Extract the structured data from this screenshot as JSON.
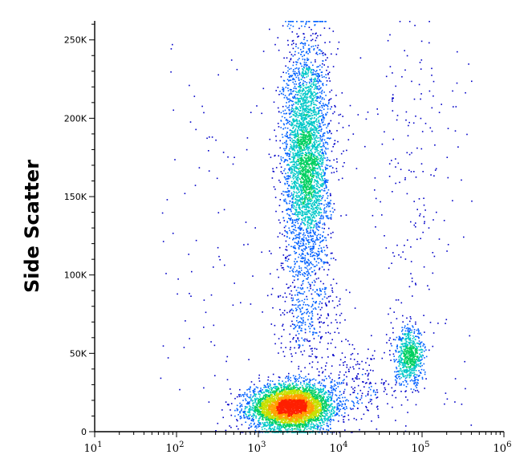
{
  "chart_data": {
    "type": "scatter",
    "title": "",
    "xlabel": "",
    "ylabel": "Side Scatter",
    "x_scale": "log",
    "xlim": [
      10,
      1000000
    ],
    "ylim": [
      0,
      262144
    ],
    "grid": false,
    "legend": "none",
    "x_ticks": [
      {
        "value": 10,
        "base": "10",
        "exp": "1"
      },
      {
        "value": 100,
        "base": "10",
        "exp": "2"
      },
      {
        "value": 1000,
        "base": "10",
        "exp": "3"
      },
      {
        "value": 10000,
        "base": "10",
        "exp": "4"
      },
      {
        "value": 100000,
        "base": "10",
        "exp": "5"
      },
      {
        "value": 1000000,
        "base": "10",
        "exp": "6"
      }
    ],
    "y_ticks": [
      {
        "value": 0,
        "label": "0"
      },
      {
        "value": 50000,
        "label": "50K"
      },
      {
        "value": 100000,
        "label": "100K"
      },
      {
        "value": 150000,
        "label": "150K"
      },
      {
        "value": 200000,
        "label": "200K"
      },
      {
        "value": 250000,
        "label": "250K"
      }
    ],
    "density_colormap": [
      "#0000c8",
      "#0060ff",
      "#00c8c8",
      "#00d060",
      "#c8e000",
      "#ffa000",
      "#ff2000"
    ],
    "populations": [
      {
        "center_x": 2500,
        "center_y": 16000,
        "spread_log_x": 0.25,
        "spread_y": 7000,
        "count": 4500
      },
      {
        "center_x": 3800,
        "center_y": 175000,
        "spread_log_x": 0.14,
        "spread_y": 38000,
        "count": 3500
      },
      {
        "center_x": 70000,
        "center_y": 48000,
        "spread_log_x": 0.09,
        "spread_y": 9000,
        "count": 700
      },
      {
        "center_x": 70000,
        "center_y": 170000,
        "spread_log_x": 0.2,
        "spread_y": 50000,
        "count": 130
      },
      {
        "center_x": 4000,
        "center_y": 75000,
        "spread_log_x": 0.2,
        "spread_y": 20000,
        "count": 350
      },
      {
        "center_x": 15000,
        "center_y": 30000,
        "spread_log_x": 0.3,
        "spread_y": 12000,
        "count": 260
      }
    ]
  }
}
